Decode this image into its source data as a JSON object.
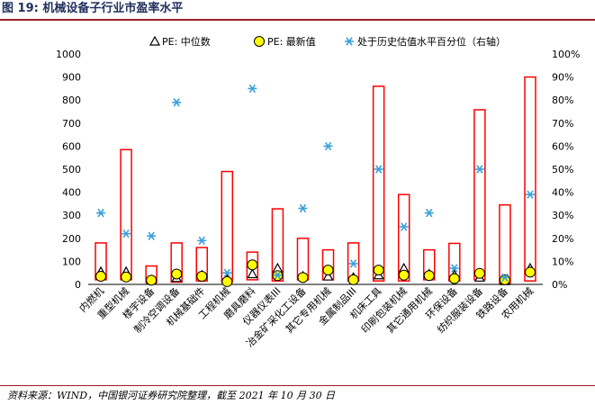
{
  "header": {
    "title": "图 19:  机械设备子行业市盈率水平"
  },
  "footer": {
    "source": "资料来源：WIND，中国银河证券研究院整理，截至 2021 年 10 月 30 日"
  },
  "chart_data": {
    "type": "bar",
    "title": "",
    "categories": [
      "内燃机",
      "重型机械",
      "楼宇设备",
      "制冷空调设备",
      "机械基础件",
      "工程机械",
      "磨具磨料",
      "仪器仪表III",
      "冶金矿采化工设备",
      "其它专用机械",
      "金属制品III",
      "机床工具",
      "印刷包装机械",
      "其它通用机械",
      "环保设备",
      "纺织服装设备",
      "铁路设备",
      "农用机械"
    ],
    "y_left": {
      "ylim": [
        0,
        1000
      ],
      "ticks": [
        "0",
        "100",
        "200",
        "300",
        "400",
        "500",
        "600",
        "700",
        "800",
        "900",
        "1000"
      ]
    },
    "y_right": {
      "ylim": [
        0,
        100
      ],
      "ticks": [
        "0%",
        "10%",
        "20%",
        "30%",
        "40%",
        "50%",
        "60%",
        "70%",
        "80%",
        "90%",
        "100%"
      ]
    },
    "series": [
      {
        "name": "PE: 中位数",
        "kind": "triangle",
        "axis": "left",
        "values": [
          55,
          55,
          18,
          28,
          40,
          20,
          45,
          70,
          35,
          35,
          30,
          40,
          70,
          45,
          40,
          30,
          15,
          70
        ]
      },
      {
        "name": "PE: 最新值",
        "kind": "circle",
        "axis": "left",
        "color": "#ffff00",
        "values": [
          35,
          32,
          18,
          45,
          35,
          12,
          85,
          38,
          30,
          62,
          20,
          62,
          40,
          38,
          25,
          48,
          20,
          53
        ]
      },
      {
        "name": "处于历史估值水平百分位（右轴）",
        "kind": "star",
        "axis": "right",
        "color": "#3aa0d8",
        "values": [
          31,
          22,
          21,
          79,
          19,
          5,
          85,
          4,
          33,
          60,
          9,
          50,
          25,
          31,
          7,
          50,
          3,
          39
        ]
      }
    ],
    "range": {
      "color": "#ff0000",
      "min": [
        20,
        20,
        8,
        10,
        15,
        10,
        20,
        15,
        20,
        20,
        15,
        15,
        15,
        20,
        15,
        20,
        5,
        15
      ],
      "max": [
        180,
        585,
        80,
        180,
        160,
        490,
        140,
        328,
        200,
        150,
        180,
        860,
        390,
        150,
        178,
        758,
        345,
        900
      ]
    }
  }
}
